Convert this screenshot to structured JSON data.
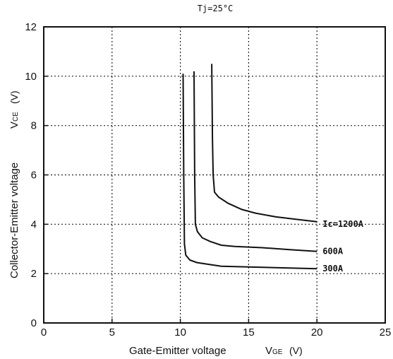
{
  "chart_data": {
    "type": "line",
    "title": "Tj=25°C",
    "xlabel": "Gate-Emitter voltage",
    "xlabel_symbol": "V",
    "xlabel_subscript": "GE",
    "xlabel_unit": "(V)",
    "ylabel": "Collector-Emitter voltage",
    "ylabel_symbol": "V",
    "ylabel_subscript": "CE",
    "ylabel_unit": "(V)",
    "xlim": [
      0,
      25
    ],
    "ylim": [
      0,
      12
    ],
    "xticks": [
      "0",
      "5",
      "10",
      "15",
      "20",
      "25"
    ],
    "yticks": [
      "0",
      "2",
      "4",
      "6",
      "8",
      "10",
      "12"
    ],
    "grid": true,
    "series": [
      {
        "name": "300A",
        "x": [
          10.2,
          10.25,
          10.3,
          10.4,
          10.7,
          11.2,
          12,
          13,
          15,
          17,
          20
        ],
        "y": [
          10.1,
          6.0,
          3.2,
          2.75,
          2.55,
          2.45,
          2.38,
          2.3,
          2.27,
          2.24,
          2.2
        ]
      },
      {
        "name": "600A",
        "x": [
          11.0,
          11.05,
          11.1,
          11.25,
          11.6,
          12.2,
          13,
          14,
          16,
          18,
          20
        ],
        "y": [
          10.2,
          6.0,
          4.0,
          3.7,
          3.45,
          3.3,
          3.15,
          3.1,
          3.05,
          2.97,
          2.9
        ]
      },
      {
        "name": "Ic=1200A",
        "x": [
          12.3,
          12.35,
          12.4,
          12.5,
          12.8,
          13.5,
          14.5,
          15.5,
          17,
          18.5,
          20
        ],
        "y": [
          10.5,
          7.5,
          6.0,
          5.3,
          5.1,
          4.85,
          4.6,
          4.45,
          4.3,
          4.2,
          4.1
        ]
      }
    ]
  }
}
